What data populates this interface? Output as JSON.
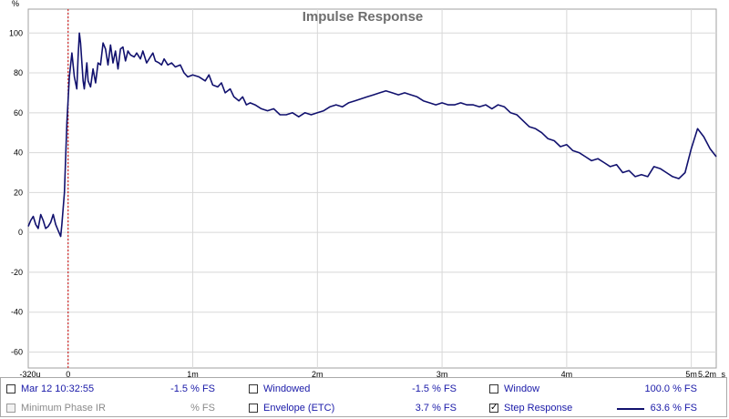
{
  "chart_data": {
    "type": "line",
    "title": "Impulse Response",
    "ylabel": "%",
    "xlabel": "s",
    "xlim": [
      -0.00032,
      0.0052
    ],
    "ylim": [
      -68,
      112
    ],
    "y_ticks": [
      100,
      80,
      60,
      40,
      20,
      0,
      -20,
      -40,
      -60
    ],
    "x_ticks": [
      {
        "value": -0.00032,
        "label": "-320u"
      },
      {
        "value": 0,
        "label": "0"
      },
      {
        "value": 0.001,
        "label": "1m"
      },
      {
        "value": 0.002,
        "label": "2m"
      },
      {
        "value": 0.003,
        "label": "3m"
      },
      {
        "value": 0.004,
        "label": "4m"
      },
      {
        "value": 0.005,
        "label": "5m"
      },
      {
        "value": 0.0052,
        "label": "5.2m"
      }
    ],
    "x_unit_label": "s",
    "grid": true,
    "marker_line": {
      "x": 0,
      "color": "#cc0000",
      "style": "dotted"
    },
    "series": [
      {
        "name": "Step Response",
        "color": "#11116e",
        "points": [
          [
            -0.00032,
            3
          ],
          [
            -0.0003,
            6
          ],
          [
            -0.00028,
            8
          ],
          [
            -0.00026,
            4
          ],
          [
            -0.00024,
            2
          ],
          [
            -0.00022,
            9
          ],
          [
            -0.0002,
            6
          ],
          [
            -0.00018,
            2
          ],
          [
            -0.00016,
            3
          ],
          [
            -0.00014,
            5
          ],
          [
            -0.00012,
            9
          ],
          [
            -0.0001,
            4
          ],
          [
            -8e-05,
            1
          ],
          [
            -6e-05,
            -2
          ],
          [
            -5e-05,
            4
          ],
          [
            -3e-05,
            20
          ],
          [
            -1e-05,
            55
          ],
          [
            1e-05,
            78
          ],
          [
            3e-05,
            90
          ],
          [
            5e-05,
            78
          ],
          [
            7e-05,
            72
          ],
          [
            8e-05,
            88
          ],
          [
            9e-05,
            100
          ],
          [
            0.0001,
            95
          ],
          [
            0.00012,
            76
          ],
          [
            0.00013,
            72
          ],
          [
            0.00015,
            85
          ],
          [
            0.00016,
            76
          ],
          [
            0.00018,
            73
          ],
          [
            0.0002,
            82
          ],
          [
            0.00022,
            75
          ],
          [
            0.00024,
            85
          ],
          [
            0.00026,
            84
          ],
          [
            0.00028,
            95
          ],
          [
            0.0003,
            92
          ],
          [
            0.00032,
            84
          ],
          [
            0.00034,
            94
          ],
          [
            0.00036,
            85
          ],
          [
            0.00038,
            91
          ],
          [
            0.0004,
            82
          ],
          [
            0.00042,
            92
          ],
          [
            0.00044,
            93
          ],
          [
            0.00046,
            86
          ],
          [
            0.00048,
            91
          ],
          [
            0.0005,
            89
          ],
          [
            0.00053,
            88
          ],
          [
            0.00055,
            90
          ],
          [
            0.00058,
            87
          ],
          [
            0.0006,
            91
          ],
          [
            0.00063,
            85
          ],
          [
            0.00066,
            88
          ],
          [
            0.00068,
            90
          ],
          [
            0.0007,
            86
          ],
          [
            0.00073,
            85
          ],
          [
            0.00075,
            84
          ],
          [
            0.00077,
            87
          ],
          [
            0.0008,
            84
          ],
          [
            0.00083,
            85
          ],
          [
            0.00086,
            83
          ],
          [
            0.0009,
            84
          ],
          [
            0.00093,
            80
          ],
          [
            0.00096,
            78
          ],
          [
            0.001,
            79
          ],
          [
            0.00105,
            78
          ],
          [
            0.0011,
            76
          ],
          [
            0.00113,
            79
          ],
          [
            0.00116,
            74
          ],
          [
            0.0012,
            73
          ],
          [
            0.00123,
            75
          ],
          [
            0.00126,
            70
          ],
          [
            0.0013,
            72
          ],
          [
            0.00133,
            68
          ],
          [
            0.00137,
            66
          ],
          [
            0.0014,
            68
          ],
          [
            0.00143,
            64
          ],
          [
            0.00146,
            65
          ],
          [
            0.0015,
            64
          ],
          [
            0.00155,
            62
          ],
          [
            0.0016,
            61
          ],
          [
            0.00165,
            62
          ],
          [
            0.0017,
            59
          ],
          [
            0.00175,
            59
          ],
          [
            0.0018,
            60
          ],
          [
            0.00185,
            58
          ],
          [
            0.0019,
            60
          ],
          [
            0.00195,
            59
          ],
          [
            0.002,
            60
          ],
          [
            0.00205,
            61
          ],
          [
            0.0021,
            63
          ],
          [
            0.00215,
            64
          ],
          [
            0.0022,
            63
          ],
          [
            0.00225,
            65
          ],
          [
            0.0023,
            66
          ],
          [
            0.00235,
            67
          ],
          [
            0.0024,
            68
          ],
          [
            0.00245,
            69
          ],
          [
            0.0025,
            70
          ],
          [
            0.00255,
            71
          ],
          [
            0.0026,
            70
          ],
          [
            0.00265,
            69
          ],
          [
            0.0027,
            70
          ],
          [
            0.00275,
            69
          ],
          [
            0.0028,
            68
          ],
          [
            0.00285,
            66
          ],
          [
            0.0029,
            65
          ],
          [
            0.00295,
            64
          ],
          [
            0.003,
            65
          ],
          [
            0.00305,
            64
          ],
          [
            0.0031,
            64
          ],
          [
            0.00315,
            65
          ],
          [
            0.0032,
            64
          ],
          [
            0.00325,
            64
          ],
          [
            0.0033,
            63
          ],
          [
            0.00335,
            64
          ],
          [
            0.0034,
            62
          ],
          [
            0.00345,
            64
          ],
          [
            0.0035,
            63
          ],
          [
            0.00355,
            60
          ],
          [
            0.0036,
            59
          ],
          [
            0.00365,
            56
          ],
          [
            0.0037,
            53
          ],
          [
            0.00375,
            52
          ],
          [
            0.0038,
            50
          ],
          [
            0.00385,
            47
          ],
          [
            0.0039,
            46
          ],
          [
            0.00395,
            43
          ],
          [
            0.004,
            44
          ],
          [
            0.00405,
            41
          ],
          [
            0.0041,
            40
          ],
          [
            0.00415,
            38
          ],
          [
            0.0042,
            36
          ],
          [
            0.00425,
            37
          ],
          [
            0.0043,
            35
          ],
          [
            0.00435,
            33
          ],
          [
            0.0044,
            34
          ],
          [
            0.00445,
            30
          ],
          [
            0.0045,
            31
          ],
          [
            0.00455,
            28
          ],
          [
            0.0046,
            29
          ],
          [
            0.00465,
            28
          ],
          [
            0.0047,
            33
          ],
          [
            0.00475,
            32
          ],
          [
            0.0048,
            30
          ],
          [
            0.00485,
            28
          ],
          [
            0.0049,
            27
          ],
          [
            0.00495,
            30
          ],
          [
            0.005,
            42
          ],
          [
            0.00505,
            52
          ],
          [
            0.0051,
            48
          ],
          [
            0.00515,
            42
          ],
          [
            0.0052,
            38
          ]
        ]
      }
    ]
  },
  "legend": {
    "rows": [
      [
        {
          "label": "Mar 12 10:32:55",
          "value": "-1.5 % FS",
          "checked": false,
          "disabled": false
        },
        {
          "label": "Windowed",
          "value": "-1.5 % FS",
          "checked": false,
          "disabled": false
        },
        {
          "label": "Window",
          "value": "100.0 % FS",
          "checked": false,
          "disabled": false
        }
      ],
      [
        {
          "label": "Minimum Phase IR",
          "value": "% FS",
          "checked": false,
          "disabled": true
        },
        {
          "label": "Envelope (ETC)",
          "value": "3.7 % FS",
          "checked": false,
          "disabled": false
        },
        {
          "label": "Step Response",
          "value": "63.6 % FS",
          "checked": true,
          "disabled": false
        }
      ]
    ],
    "checkmark": "✓"
  }
}
